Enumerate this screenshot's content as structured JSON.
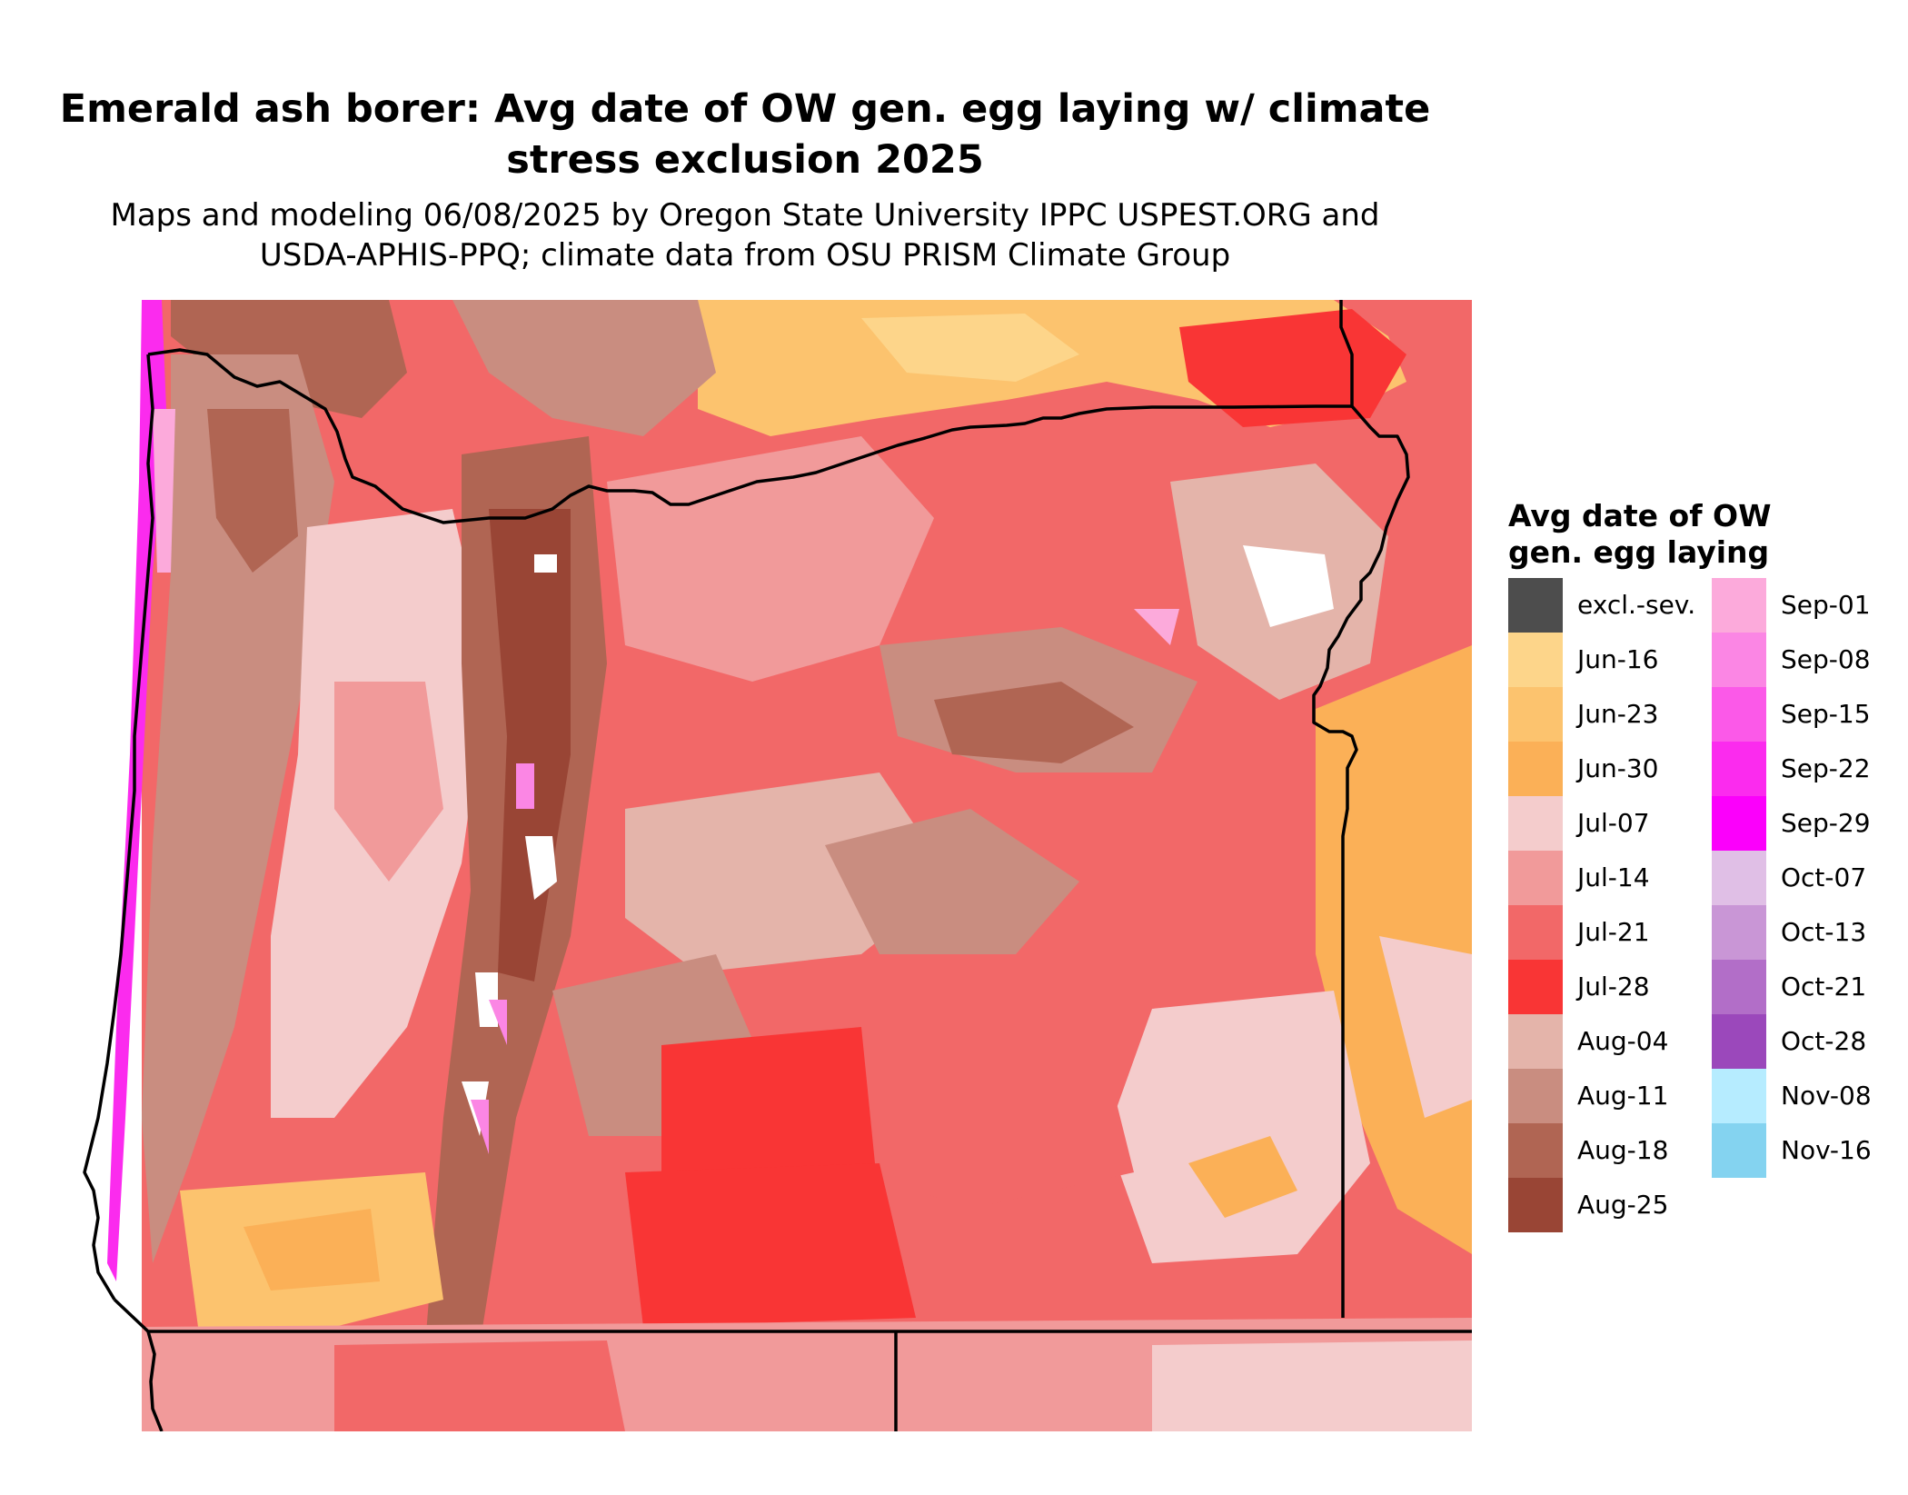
{
  "title_line1": "Emerald ash borer: Avg date of OW gen. egg laying w/ climate",
  "title_line2": "stress exclusion 2025",
  "subtitle_line1": "Maps and modeling 06/08/2025 by Oregon State University IPPC USPEST.ORG and",
  "subtitle_line2": "USDA-APHIS-PPQ; climate data from OSU PRISM Climate Group",
  "legend": {
    "title_line1": "Avg date of OW",
    "title_line2": "gen. egg laying",
    "items": [
      {
        "label": "excl.-sev.",
        "color": "#4d4d4d"
      },
      {
        "label": "Jun-16",
        "color": "#fdd58a"
      },
      {
        "label": "Jun-23",
        "color": "#fcc36e"
      },
      {
        "label": "Jun-30",
        "color": "#fbb057"
      },
      {
        "label": "Jul-07",
        "color": "#f4cccc"
      },
      {
        "label": "Jul-14",
        "color": "#f19a9a"
      },
      {
        "label": "Jul-21",
        "color": "#f26868"
      },
      {
        "label": "Jul-28",
        "color": "#f93535"
      },
      {
        "label": "Aug-04",
        "color": "#e4b4aa"
      },
      {
        "label": "Aug-11",
        "color": "#c98d80"
      },
      {
        "label": "Aug-18",
        "color": "#b06553"
      },
      {
        "label": "Aug-25",
        "color": "#994535"
      },
      {
        "label": "Sep-01",
        "color": "#fcaadb"
      },
      {
        "label": "Sep-08",
        "color": "#fb86e4"
      },
      {
        "label": "Sep-15",
        "color": "#fb59e8"
      },
      {
        "label": "Sep-22",
        "color": "#fb2bee"
      },
      {
        "label": "Sep-29",
        "color": "#fb00fb"
      },
      {
        "label": "Oct-07",
        "color": "#e0bfe6"
      },
      {
        "label": "Oct-13",
        "color": "#c996d6"
      },
      {
        "label": "Oct-21",
        "color": "#b26ec8"
      },
      {
        "label": "Oct-28",
        "color": "#9b48bb"
      },
      {
        "label": "Nov-08",
        "color": "#b6ecff"
      },
      {
        "label": "Nov-16",
        "color": "#84d3f0"
      }
    ]
  }
}
